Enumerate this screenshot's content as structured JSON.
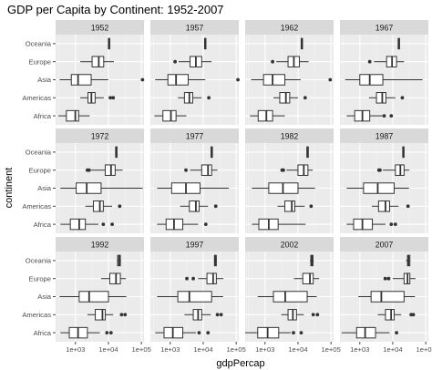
{
  "chart_data": {
    "type": "boxplot",
    "title": "GDP per Capita by Continent: 1952-2007",
    "xlabel": "gdpPercap",
    "ylabel": "continent",
    "x_scale": "log10",
    "xlim": [
      250,
      120000
    ],
    "x_ticks": [
      1000,
      10000,
      100000
    ],
    "x_tick_labels": [
      "1e+03",
      "1e+04",
      "1e+05"
    ],
    "categories": [
      "Oceania",
      "Europe",
      "Asia",
      "Americas",
      "Africa"
    ],
    "facets": [
      "1952",
      "1957",
      "1962",
      "1967",
      "1972",
      "1977",
      "1982",
      "1987",
      "1992",
      "1997",
      "2002",
      "2007"
    ],
    "facet_layout": {
      "rows": 3,
      "cols": 4
    },
    "grid": true,
    "panels": [
      {
        "facet": "1952",
        "boxes": {
          "Oceania": {
            "min": 10000,
            "q1": 10000,
            "median": 10300,
            "q3": 10500,
            "max": 10600,
            "outliers": []
          },
          "Europe": {
            "min": 1400,
            "q1": 3200,
            "median": 5100,
            "q3": 7200,
            "max": 14700,
            "outliers": []
          },
          "Asia": {
            "min": 330,
            "q1": 750,
            "median": 1200,
            "q3": 3000,
            "max": 9900,
            "outliers": [
              108000
            ]
          },
          "Americas": {
            "min": 1400,
            "q1": 2400,
            "median": 3050,
            "q3": 3950,
            "max": 7200,
            "outliers": [
              11400,
              13990
            ]
          },
          "Africa": {
            "min": 300,
            "q1": 530,
            "median": 990,
            "q3": 1250,
            "max": 2700,
            "outliers": []
          }
        }
      },
      {
        "facet": "1957",
        "boxes": {
          "Oceania": {
            "min": 10900,
            "q1": 11000,
            "median": 11500,
            "q3": 12000,
            "max": 12200,
            "outliers": []
          },
          "Europe": {
            "min": 1800,
            "q1": 4000,
            "median": 6000,
            "q3": 9000,
            "max": 17900,
            "outliers": [
              1400
            ]
          },
          "Asia": {
            "min": 350,
            "q1": 850,
            "median": 1500,
            "q3": 3500,
            "max": 11600,
            "outliers": [
              113000
            ]
          },
          "Americas": {
            "min": 1700,
            "q1": 2700,
            "median": 3800,
            "q3": 4800,
            "max": 9000,
            "outliers": [
              14800
            ]
          },
          "Africa": {
            "min": 330,
            "q1": 600,
            "median": 1050,
            "q3": 1500,
            "max": 3100,
            "outliers": []
          }
        }
      },
      {
        "facet": "1962",
        "boxes": {
          "Oceania": {
            "min": 12200,
            "q1": 12500,
            "median": 13000,
            "q3": 13500,
            "max": 13800,
            "outliers": []
          },
          "Europe": {
            "min": 2200,
            "q1": 5000,
            "median": 7500,
            "q3": 11000,
            "max": 21000,
            "outliers": [
              1700
            ]
          },
          "Asia": {
            "min": 380,
            "q1": 900,
            "median": 1700,
            "q3": 4000,
            "max": 12000,
            "outliers": [
              95000
            ]
          },
          "Americas": {
            "min": 1800,
            "q1": 2800,
            "median": 4300,
            "q3": 5600,
            "max": 10000,
            "outliers": [
              16500
            ]
          },
          "Africa": {
            "min": 350,
            "q1": 620,
            "median": 1100,
            "q3": 1700,
            "max": 4000,
            "outliers": []
          }
        }
      },
      {
        "facet": "1967",
        "boxes": {
          "Oceania": {
            "min": 14500,
            "q1": 14600,
            "median": 15000,
            "q3": 15500,
            "max": 15700,
            "outliers": []
          },
          "Europe": {
            "min": 2700,
            "q1": 6500,
            "median": 9500,
            "q3": 13000,
            "max": 22000,
            "outliers": [
              2000
            ]
          },
          "Asia": {
            "min": 360,
            "q1": 1000,
            "median": 2000,
            "q3": 5000,
            "max": 80000,
            "outliers": []
          },
          "Americas": {
            "min": 1900,
            "q1": 3200,
            "median": 4800,
            "q3": 6200,
            "max": 12000,
            "outliers": [
              19500
            ]
          },
          "Africa": {
            "min": 400,
            "q1": 700,
            "median": 1200,
            "q3": 2000,
            "max": 4900,
            "outliers": [
              5500,
              9000
            ]
          }
        }
      },
      {
        "facet": "1972",
        "boxes": {
          "Oceania": {
            "min": 16500,
            "q1": 16600,
            "median": 17000,
            "q3": 17500,
            "max": 17800,
            "outliers": []
          },
          "Europe": {
            "min": 3000,
            "q1": 8000,
            "median": 12000,
            "q3": 16000,
            "max": 27000,
            "outliers": [
              2300,
              2600
            ]
          },
          "Asia": {
            "min": 350,
            "q1": 1050,
            "median": 2200,
            "q3": 6000,
            "max": 110000,
            "outliers": []
          },
          "Americas": {
            "min": 2000,
            "q1": 3500,
            "median": 5500,
            "q3": 7000,
            "max": 13000,
            "outliers": [
              22000
            ]
          },
          "Africa": {
            "min": 350,
            "q1": 700,
            "median": 1300,
            "q3": 2000,
            "max": 5000,
            "outliers": [
              7000,
              13000
            ]
          }
        }
      },
      {
        "facet": "1977",
        "boxes": {
          "Oceania": {
            "min": 17000,
            "q1": 17300,
            "median": 17800,
            "q3": 18300,
            "max": 18500,
            "outliers": []
          },
          "Europe": {
            "min": 4000,
            "q1": 9000,
            "median": 14000,
            "q3": 18000,
            "max": 27000,
            "outliers": [
              3000
            ]
          },
          "Asia": {
            "min": 400,
            "q1": 1100,
            "median": 3000,
            "q3": 8000,
            "max": 60000,
            "outliers": []
          },
          "Americas": {
            "min": 2000,
            "q1": 3800,
            "median": 6000,
            "q3": 7500,
            "max": 14000,
            "outliers": [
              24000
            ]
          },
          "Africa": {
            "min": 400,
            "q1": 750,
            "median": 1300,
            "q3": 2400,
            "max": 7000,
            "outliers": [
              12000
            ]
          }
        }
      },
      {
        "facet": "1982",
        "boxes": {
          "Oceania": {
            "min": 18500,
            "q1": 18700,
            "median": 19200,
            "q3": 19800,
            "max": 20000,
            "outliers": []
          },
          "Europe": {
            "min": 4500,
            "q1": 10000,
            "median": 15000,
            "q3": 20000,
            "max": 28000,
            "outliers": [
              3300,
              3600
            ]
          },
          "Asia": {
            "min": 400,
            "q1": 1300,
            "median": 3500,
            "q3": 10000,
            "max": 33000,
            "outliers": []
          },
          "Americas": {
            "min": 2400,
            "q1": 4000,
            "median": 6500,
            "q3": 8000,
            "max": 16000,
            "outliers": [
              25000
            ]
          },
          "Africa": {
            "min": 400,
            "q1": 650,
            "median": 1300,
            "q3": 2500,
            "max": 17000,
            "outliers": []
          }
        }
      },
      {
        "facet": "1987",
        "boxes": {
          "Oceania": {
            "min": 19500,
            "q1": 20000,
            "median": 21000,
            "q3": 22000,
            "max": 22500,
            "outliers": []
          },
          "Europe": {
            "min": 5000,
            "q1": 12000,
            "median": 17000,
            "q3": 22000,
            "max": 32000,
            "outliers": [
              3800,
              4100
            ]
          },
          "Asia": {
            "min": 400,
            "q1": 1300,
            "median": 3500,
            "q3": 11000,
            "max": 31000,
            "outliers": []
          },
          "Americas": {
            "min": 2300,
            "q1": 3700,
            "median": 6000,
            "q3": 8000,
            "max": 15000,
            "outliers": [
              29000
            ]
          },
          "Africa": {
            "min": 400,
            "q1": 650,
            "median": 1200,
            "q3": 2400,
            "max": 6000,
            "outliers": [
              9000,
              12000
            ]
          }
        }
      },
      {
        "facet": "1992",
        "boxes": {
          "Oceania": {
            "min": 18000,
            "q1": 19000,
            "median": 21000,
            "q3": 23000,
            "max": 24000,
            "outliers": []
          },
          "Europe": {
            "min": 6000,
            "q1": 11000,
            "median": 17000,
            "q3": 23000,
            "max": 34000,
            "outliers": []
          },
          "Asia": {
            "min": 330,
            "q1": 1300,
            "median": 2600,
            "q3": 10000,
            "max": 35000,
            "outliers": []
          },
          "Americas": {
            "min": 2300,
            "q1": 4000,
            "median": 6600,
            "q3": 8000,
            "max": 14000,
            "outliers": [
              25000,
              32000
            ]
          },
          "Africa": {
            "min": 350,
            "q1": 650,
            "median": 1200,
            "q3": 2300,
            "max": 5500,
            "outliers": [
              9000,
              12000
            ]
          }
        }
      },
      {
        "facet": "1997",
        "boxes": {
          "Oceania": {
            "min": 21000,
            "q1": 22000,
            "median": 23500,
            "q3": 25000,
            "max": 26000,
            "outliers": []
          },
          "Europe": {
            "min": 7000,
            "q1": 13000,
            "median": 20000,
            "q3": 25000,
            "max": 41000,
            "outliers": [
              3200,
              5000
            ]
          },
          "Asia": {
            "min": 400,
            "q1": 1700,
            "median": 3800,
            "q3": 18000,
            "max": 40000,
            "outliers": []
          },
          "Americas": {
            "min": 2700,
            "q1": 5000,
            "median": 7000,
            "q3": 9000,
            "max": 17000,
            "outliers": [
              27000,
              35000
            ]
          },
          "Africa": {
            "min": 350,
            "q1": 650,
            "median": 1200,
            "q3": 2400,
            "max": 6000,
            "outliers": [
              7500,
              14000
            ]
          }
        }
      },
      {
        "facet": "2002",
        "boxes": {
          "Oceania": {
            "min": 23000,
            "q1": 24500,
            "median": 26500,
            "q3": 28500,
            "max": 30000,
            "outliers": []
          },
          "Europe": {
            "min": 7500,
            "q1": 14000,
            "median": 23000,
            "q3": 29000,
            "max": 44000,
            "outliers": []
          },
          "Asia": {
            "min": 600,
            "q1": 1800,
            "median": 4100,
            "q3": 19000,
            "max": 37000,
            "outliers": []
          },
          "Americas": {
            "min": 3100,
            "q1": 5000,
            "median": 7000,
            "q3": 9000,
            "max": 15000,
            "outliers": [
              29000,
              39000
            ]
          },
          "Africa": {
            "min": 250,
            "q1": 600,
            "median": 1200,
            "q3": 2600,
            "max": 6000,
            "outliers": [
              7300,
              12500
            ]
          }
        }
      },
      {
        "facet": "2007",
        "boxes": {
          "Oceania": {
            "min": 25000,
            "q1": 28000,
            "median": 30000,
            "q3": 33000,
            "max": 34400,
            "outliers": []
          },
          "Europe": {
            "min": 10000,
            "q1": 22000,
            "median": 28000,
            "q3": 33000,
            "max": 49000,
            "outliers": [
              5900,
              7500
            ]
          },
          "Asia": {
            "min": 900,
            "q1": 2200,
            "median": 4500,
            "q3": 22000,
            "max": 47000,
            "outliers": []
          },
          "Americas": {
            "min": 3500,
            "q1": 6000,
            "median": 8900,
            "q3": 11000,
            "max": 18000,
            "outliers": [
              36000,
              42000
            ]
          },
          "Africa": {
            "min": 280,
            "q1": 800,
            "median": 1450,
            "q3": 3000,
            "max": 8000,
            "outliers": [
              13000
            ]
          }
        }
      }
    ]
  }
}
